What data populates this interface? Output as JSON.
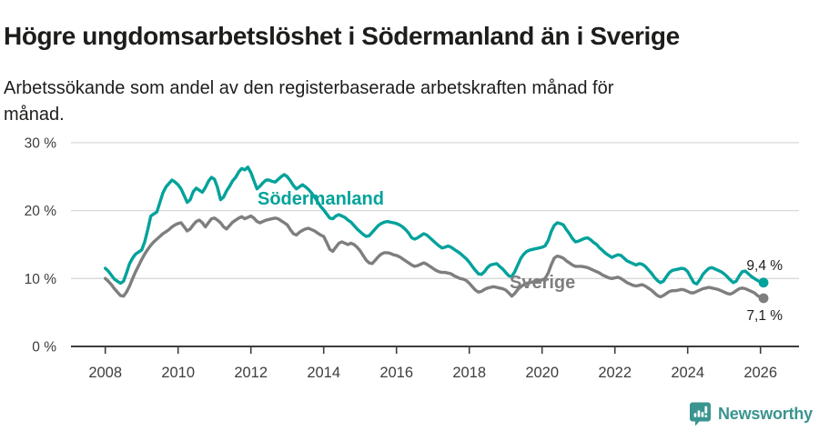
{
  "chart_data": {
    "type": "line",
    "title": "Högre ungdomsarbetslöshet i Södermanland än i Sverige",
    "subtitle_lines": [
      "Arbetssökande som andel av den registerbaserade arbetskraften månad för",
      "månad."
    ],
    "x_unit": "month",
    "x_start": "2008-01",
    "x_end": "2026-02",
    "x_tick_years": [
      2008,
      2010,
      2012,
      2014,
      2016,
      2018,
      2020,
      2022,
      2024,
      2026
    ],
    "y_ticks": [
      0,
      10,
      20,
      30
    ],
    "y_tick_suffix": " %",
    "ylim": [
      0,
      32.3
    ],
    "grid": "horizontal",
    "legend_position": "inline-labels",
    "axis_color": "#3d3d3d",
    "grid_color": "#d9d9d9",
    "end_label_color": "#1d1d1b",
    "series": [
      {
        "name": "Södermanland",
        "color": "#00a29b",
        "end_label": "9,4 %",
        "last_value": 9.4,
        "values": [
          11.5,
          11.1,
          10.5,
          9.9,
          9.6,
          9.3,
          9.6,
          10.8,
          12.2,
          13.0,
          13.6,
          13.9,
          14.2,
          15.4,
          17.2,
          19.2,
          19.5,
          19.8,
          21.2,
          22.6,
          23.5,
          24.0,
          24.5,
          24.2,
          23.8,
          23.2,
          22.2,
          21.2,
          21.6,
          22.8,
          23.3,
          23.0,
          22.7,
          23.4,
          24.3,
          24.9,
          24.6,
          23.4,
          21.6,
          22.0,
          22.9,
          23.6,
          24.4,
          24.9,
          25.7,
          26.2,
          26.0,
          26.4,
          25.6,
          24.4,
          23.2,
          23.6,
          24.1,
          24.5,
          24.5,
          24.3,
          24.2,
          24.6,
          25.0,
          25.3,
          25.0,
          24.4,
          23.7,
          23.2,
          23.5,
          23.8,
          23.5,
          23.1,
          22.6,
          22.0,
          21.3,
          20.6,
          20.1,
          19.5,
          18.9,
          18.8,
          19.2,
          19.4,
          19.2,
          19.0,
          18.6,
          18.3,
          17.8,
          17.3,
          16.9,
          16.5,
          16.2,
          16.3,
          16.8,
          17.3,
          17.8,
          18.1,
          18.3,
          18.4,
          18.3,
          18.2,
          18.1,
          17.9,
          17.6,
          17.2,
          16.7,
          16.0,
          15.8,
          16.0,
          16.3,
          16.6,
          16.4,
          16.0,
          15.6,
          15.2,
          14.8,
          14.5,
          14.6,
          14.8,
          14.6,
          14.3,
          14.0,
          13.7,
          13.3,
          12.9,
          12.4,
          11.8,
          11.2,
          10.7,
          10.6,
          11.0,
          11.6,
          12.0,
          12.1,
          12.2,
          11.8,
          11.4,
          10.9,
          10.4,
          10.3,
          11.0,
          12.0,
          13.0,
          13.6,
          14.0,
          14.2,
          14.3,
          14.4,
          14.5,
          14.6,
          14.8,
          15.6,
          16.9,
          17.8,
          18.2,
          18.1,
          17.9,
          17.2,
          16.6,
          15.9,
          15.4,
          15.5,
          15.7,
          15.9,
          16.0,
          15.7,
          15.3,
          15.0,
          14.5,
          14.1,
          13.7,
          13.4,
          13.1,
          13.3,
          13.5,
          13.4,
          13.0,
          12.6,
          12.4,
          12.2,
          12.0,
          12.2,
          12.1,
          11.8,
          11.3,
          10.8,
          10.2,
          9.7,
          9.4,
          9.6,
          10.3,
          10.9,
          11.2,
          11.3,
          11.4,
          11.5,
          11.4,
          11.0,
          10.2,
          9.4,
          9.2,
          9.8,
          10.6,
          11.1,
          11.5,
          11.6,
          11.4,
          11.2,
          11.0,
          10.7,
          10.3,
          9.8,
          9.4,
          9.6,
          10.4,
          11.0,
          11.1,
          10.7,
          10.3,
          10.0,
          9.7,
          9.5,
          9.4
        ]
      },
      {
        "name": "Sverige",
        "color": "#7e7e7e",
        "end_label": "7,1 %",
        "last_value": 7.1,
        "values": [
          10.0,
          9.6,
          9.1,
          8.5,
          8.0,
          7.5,
          7.4,
          8.0,
          8.9,
          10.0,
          11.0,
          11.9,
          12.8,
          13.6,
          14.3,
          14.9,
          15.4,
          15.8,
          16.2,
          16.6,
          16.9,
          17.2,
          17.6,
          17.9,
          18.1,
          18.2,
          17.6,
          17.0,
          17.3,
          17.9,
          18.4,
          18.6,
          18.2,
          17.6,
          18.2,
          18.8,
          18.9,
          18.6,
          18.2,
          17.6,
          17.3,
          17.8,
          18.3,
          18.6,
          18.9,
          19.1,
          18.8,
          19.0,
          19.2,
          18.9,
          18.4,
          18.2,
          18.4,
          18.6,
          18.7,
          18.8,
          18.9,
          18.8,
          18.5,
          18.2,
          17.9,
          17.2,
          16.6,
          16.4,
          16.8,
          17.1,
          17.3,
          17.4,
          17.2,
          17.0,
          16.7,
          16.4,
          16.2,
          15.3,
          14.3,
          14.0,
          14.6,
          15.2,
          15.4,
          15.2,
          15.0,
          15.2,
          15.0,
          14.6,
          14.1,
          13.4,
          12.7,
          12.3,
          12.2,
          12.7,
          13.2,
          13.6,
          13.8,
          13.8,
          13.7,
          13.5,
          13.4,
          13.2,
          12.9,
          12.6,
          12.3,
          12.0,
          11.8,
          11.9,
          12.1,
          12.3,
          12.1,
          11.8,
          11.5,
          11.2,
          11.0,
          10.9,
          10.9,
          10.8,
          10.7,
          10.4,
          10.2,
          10.0,
          9.9,
          9.7,
          9.3,
          8.8,
          8.3,
          8.0,
          8.1,
          8.4,
          8.6,
          8.7,
          8.8,
          8.7,
          8.6,
          8.5,
          8.3,
          7.9,
          7.4,
          7.8,
          8.4,
          8.8,
          9.1,
          9.3,
          9.4,
          9.5,
          9.6,
          9.7,
          9.8,
          10.0,
          10.8,
          12.0,
          13.0,
          13.3,
          13.2,
          13.0,
          12.6,
          12.3,
          12.0,
          11.8,
          11.8,
          11.8,
          11.7,
          11.6,
          11.4,
          11.2,
          11.0,
          10.8,
          10.5,
          10.3,
          10.1,
          10.0,
          10.1,
          10.2,
          10.0,
          9.7,
          9.4,
          9.2,
          9.0,
          8.9,
          9.0,
          9.1,
          8.9,
          8.6,
          8.3,
          7.9,
          7.5,
          7.3,
          7.5,
          7.8,
          8.1,
          8.2,
          8.2,
          8.3,
          8.4,
          8.3,
          8.1,
          7.9,
          7.9,
          8.1,
          8.3,
          8.5,
          8.6,
          8.7,
          8.6,
          8.5,
          8.4,
          8.2,
          8.0,
          7.8,
          7.7,
          7.9,
          8.2,
          8.5,
          8.6,
          8.5,
          8.3,
          8.1,
          7.9,
          7.5,
          7.2,
          7.1
        ]
      }
    ]
  },
  "footer": {
    "brand": "Newsworthy",
    "logo_color": "#3a948f"
  }
}
